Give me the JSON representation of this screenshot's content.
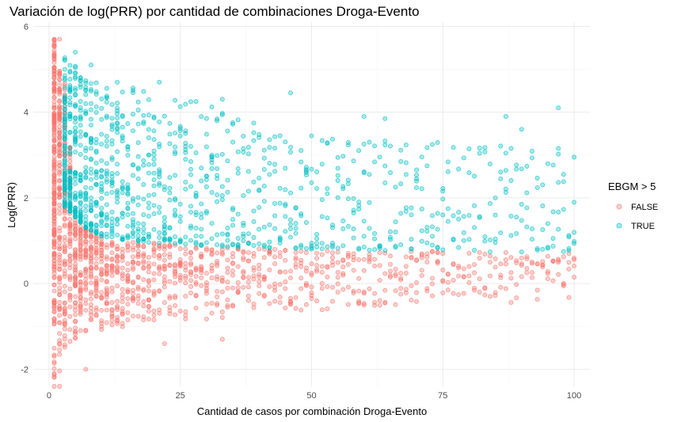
{
  "chart_data": {
    "type": "scatter",
    "title": "Variación de log(PRR) por cantidad de combinaciones Droga-Evento",
    "xlabel": "Cantidad de casos por combinación Droga-Evento",
    "ylabel": "Log(PRR)",
    "xlim": [
      -3,
      103
    ],
    "ylim": [
      -2.4,
      6.1
    ],
    "x_ticks": [
      0,
      25,
      50,
      75,
      100
    ],
    "y_ticks": [
      -2,
      0,
      2,
      4,
      6
    ],
    "grid": true,
    "legend": {
      "title": "EBGM > 5",
      "position": "right",
      "entries": [
        "FALSE",
        "TRUE"
      ]
    },
    "series": [
      {
        "name": "FALSE",
        "color": "#F8766D",
        "band": {
          "x": [
            1,
            2,
            3,
            4,
            5,
            7,
            10,
            15,
            20,
            30,
            40,
            50,
            60,
            75,
            90,
            100
          ],
          "y_min": [
            -2.4,
            -2.2,
            -1.8,
            -1.5,
            -1.35,
            -1.2,
            -1.1,
            -1.0,
            -0.95,
            -0.85,
            -0.75,
            -0.65,
            -0.6,
            -0.5,
            -0.45,
            -0.4
          ],
          "y_max": [
            5.7,
            5.0,
            4.7,
            3.3,
            1.6,
            1.3,
            1.1,
            1.0,
            0.95,
            0.9,
            0.85,
            0.8,
            0.78,
            0.75,
            0.72,
            0.7
          ]
        },
        "notable_points": [
          [
            1,
            5.7
          ],
          [
            2,
            5.7
          ],
          [
            1,
            -2.4
          ],
          [
            2,
            -2.4
          ],
          [
            7,
            -2.0
          ],
          [
            33,
            -1.3
          ],
          [
            22,
            -1.4
          ]
        ]
      },
      {
        "name": "TRUE",
        "color": "#00BFC4",
        "band": {
          "x": [
            3,
            5,
            7,
            10,
            15,
            20,
            30,
            40,
            50,
            60,
            75,
            90,
            100
          ],
          "y_min": [
            1.8,
            1.55,
            1.3,
            1.1,
            1.0,
            0.95,
            0.88,
            0.84,
            0.8,
            0.78,
            0.75,
            0.73,
            0.72
          ],
          "y_max": [
            5.3,
            5.1,
            4.9,
            4.7,
            4.6,
            4.5,
            4.2,
            3.7,
            3.5,
            3.4,
            3.3,
            3.2,
            3.1
          ]
        },
        "notable_points": [
          [
            5,
            5.4
          ],
          [
            8,
            5.1
          ],
          [
            13,
            4.7
          ],
          [
            21,
            4.7
          ],
          [
            33,
            4.3
          ],
          [
            46,
            4.45
          ],
          [
            97,
            4.1
          ],
          [
            60,
            3.9
          ],
          [
            64,
            3.85
          ],
          [
            87,
            3.9
          ],
          [
            90,
            3.6
          ],
          [
            97,
            3.15
          ],
          [
            100,
            2.95
          ]
        ]
      }
    ]
  }
}
